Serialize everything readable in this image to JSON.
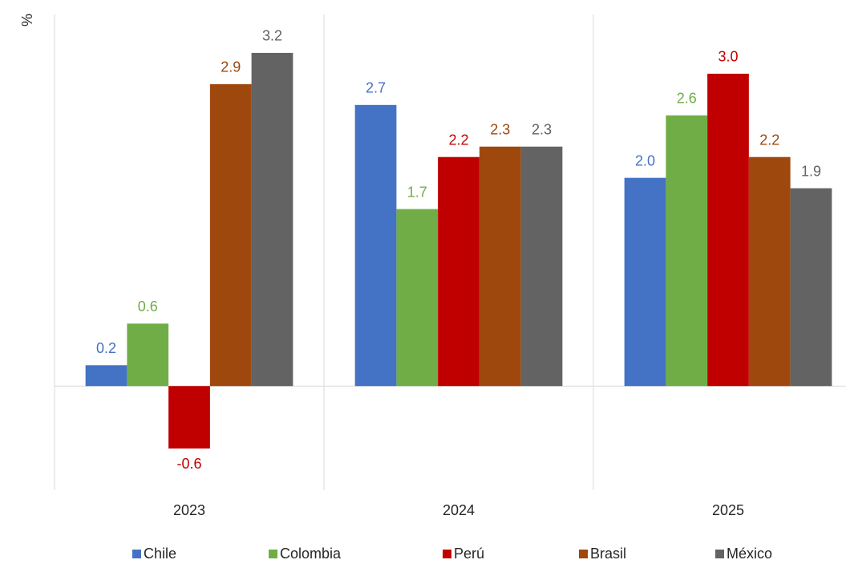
{
  "chart_data": {
    "type": "bar",
    "y_label": "%",
    "categories": [
      "2023",
      "2024",
      "2025"
    ],
    "series": [
      {
        "name": "Chile",
        "color": "#4472c4",
        "values": [
          0.2,
          2.7,
          2.0
        ],
        "value_labels": [
          "0.2",
          "2.7",
          "2.0"
        ]
      },
      {
        "name": "Colombia",
        "color": "#70ad47",
        "values": [
          0.6,
          1.7,
          2.6
        ],
        "value_labels": [
          "0.6",
          "1.7",
          "2.6"
        ]
      },
      {
        "name": "Perú",
        "color": "#c00000",
        "values": [
          -0.6,
          2.2,
          3.0
        ],
        "value_labels": [
          "-0.6",
          "2.2",
          "3.0"
        ]
      },
      {
        "name": "Brasil",
        "color": "#9e480e",
        "values": [
          2.9,
          2.3,
          2.2
        ],
        "value_labels": [
          "2.9",
          "2.3",
          "2.2"
        ]
      },
      {
        "name": "México",
        "color": "#636363",
        "values": [
          3.2,
          2.3,
          1.9
        ],
        "value_labels": [
          "3.2",
          "2.3",
          "1.9"
        ]
      }
    ],
    "ylim": [
      -1,
      3.5
    ],
    "legend": "bottom"
  }
}
